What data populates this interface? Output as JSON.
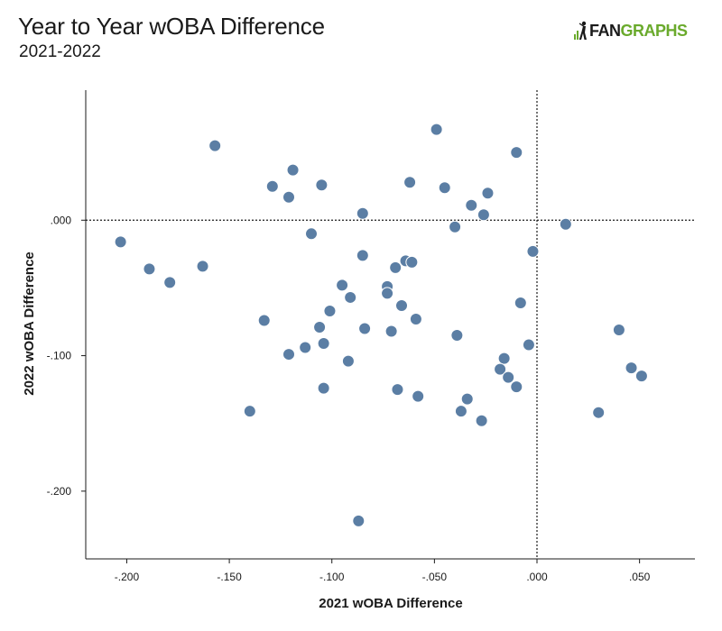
{
  "header": {
    "title": "Year to Year wOBA Difference",
    "subtitle": "2021-2022",
    "logo_text_dark": "FAN",
    "logo_text_green": "GRAPHS",
    "logo_color": "#6aaa2c"
  },
  "chart_data": {
    "type": "scatter",
    "title": "Year to Year wOBA Difference",
    "subtitle": "2021-2022",
    "xlabel": "2021 wOBA Difference",
    "ylabel": "2022 wOBA Difference",
    "xlim": [
      -0.22,
      0.077
    ],
    "ylim": [
      -0.25,
      0.096
    ],
    "x_ticks": [
      -0.2,
      -0.15,
      -0.1,
      -0.05,
      0.0,
      0.05
    ],
    "x_tick_labels": [
      "-.200",
      "-.150",
      "-.100",
      "-.050",
      ".000",
      ".050"
    ],
    "y_ticks": [
      0.0,
      -0.1,
      -0.2
    ],
    "y_tick_labels": [
      ".000",
      "-.100",
      "-.200"
    ],
    "reference_lines": "dotted lines at x = 0 and y = 0",
    "grid": false,
    "point_color": "#5b7ea4",
    "point_stroke": "#ffffff",
    "points": [
      {
        "x": -0.157,
        "y": 0.055
      },
      {
        "x": -0.049,
        "y": 0.067
      },
      {
        "x": -0.01,
        "y": 0.05
      },
      {
        "x": -0.119,
        "y": 0.037
      },
      {
        "x": -0.129,
        "y": 0.025
      },
      {
        "x": -0.121,
        "y": 0.017
      },
      {
        "x": -0.105,
        "y": 0.026
      },
      {
        "x": -0.062,
        "y": 0.028
      },
      {
        "x": -0.045,
        "y": 0.024
      },
      {
        "x": -0.024,
        "y": 0.02
      },
      {
        "x": -0.032,
        "y": 0.011
      },
      {
        "x": -0.026,
        "y": 0.004
      },
      {
        "x": -0.085,
        "y": 0.005
      },
      {
        "x": -0.04,
        "y": -0.005
      },
      {
        "x": 0.014,
        "y": -0.003
      },
      {
        "x": -0.11,
        "y": -0.01
      },
      {
        "x": -0.203,
        "y": -0.016
      },
      {
        "x": -0.002,
        "y": -0.023
      },
      {
        "x": -0.085,
        "y": -0.026
      },
      {
        "x": -0.189,
        "y": -0.036
      },
      {
        "x": -0.163,
        "y": -0.034
      },
      {
        "x": -0.064,
        "y": -0.03
      },
      {
        "x": -0.061,
        "y": -0.031
      },
      {
        "x": -0.069,
        "y": -0.035
      },
      {
        "x": -0.179,
        "y": -0.046
      },
      {
        "x": -0.095,
        "y": -0.048
      },
      {
        "x": -0.073,
        "y": -0.049
      },
      {
        "x": -0.073,
        "y": -0.054
      },
      {
        "x": -0.091,
        "y": -0.057
      },
      {
        "x": -0.066,
        "y": -0.063
      },
      {
        "x": -0.008,
        "y": -0.061
      },
      {
        "x": -0.101,
        "y": -0.067
      },
      {
        "x": -0.133,
        "y": -0.074
      },
      {
        "x": -0.059,
        "y": -0.073
      },
      {
        "x": -0.106,
        "y": -0.079
      },
      {
        "x": -0.084,
        "y": -0.08
      },
      {
        "x": -0.071,
        "y": -0.082
      },
      {
        "x": -0.039,
        "y": -0.085
      },
      {
        "x": -0.104,
        "y": -0.091
      },
      {
        "x": -0.113,
        "y": -0.094
      },
      {
        "x": -0.004,
        "y": -0.092
      },
      {
        "x": -0.121,
        "y": -0.099
      },
      {
        "x": 0.04,
        "y": -0.081
      },
      {
        "x": -0.092,
        "y": -0.104
      },
      {
        "x": -0.016,
        "y": -0.102
      },
      {
        "x": -0.018,
        "y": -0.11
      },
      {
        "x": -0.014,
        "y": -0.116
      },
      {
        "x": -0.01,
        "y": -0.123
      },
      {
        "x": 0.046,
        "y": -0.109
      },
      {
        "x": 0.051,
        "y": -0.115
      },
      {
        "x": -0.104,
        "y": -0.124
      },
      {
        "x": -0.068,
        "y": -0.125
      },
      {
        "x": -0.058,
        "y": -0.13
      },
      {
        "x": -0.034,
        "y": -0.132
      },
      {
        "x": -0.14,
        "y": -0.141
      },
      {
        "x": -0.037,
        "y": -0.141
      },
      {
        "x": -0.027,
        "y": -0.148
      },
      {
        "x": 0.03,
        "y": -0.142
      },
      {
        "x": -0.087,
        "y": -0.222
      }
    ]
  }
}
